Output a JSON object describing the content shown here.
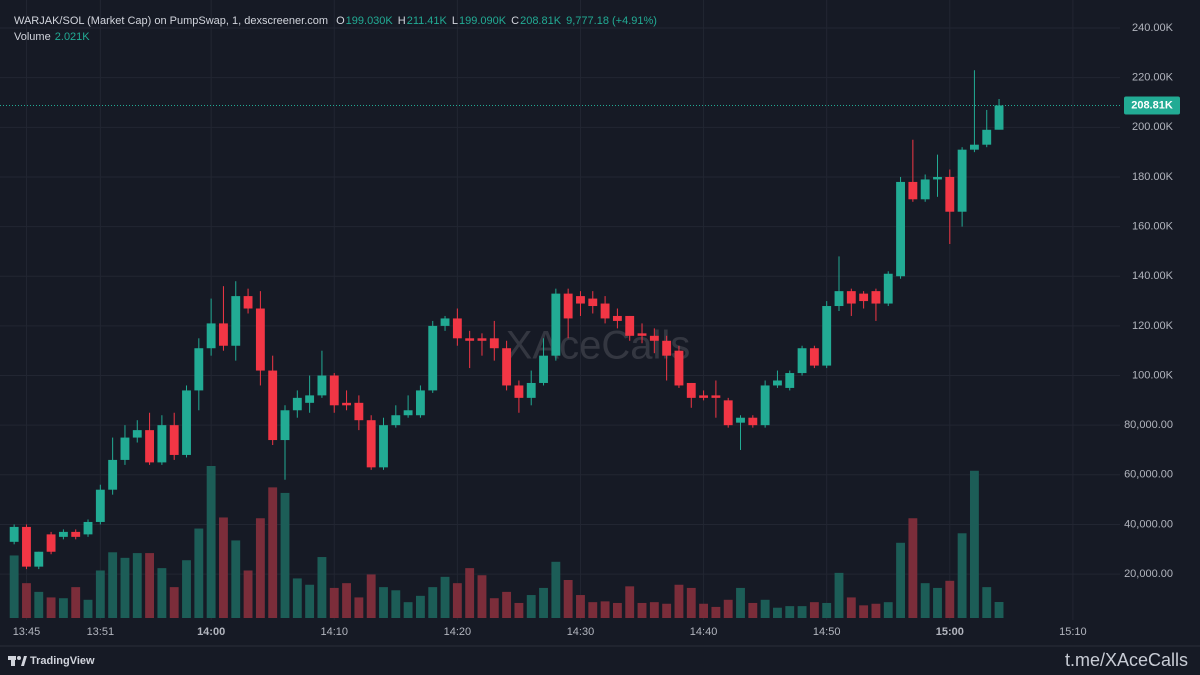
{
  "header": {
    "title": "WARJAK/SOL (Market Cap) on PumpSwap, 1, dexscreener.com",
    "ohlc": [
      {
        "key": "O",
        "value": "199.030K"
      },
      {
        "key": "H",
        "value": "211.41K"
      },
      {
        "key": "L",
        "value": "199.090K"
      },
      {
        "key": "C",
        "value": "208.81K"
      }
    ],
    "change": "9,777.18 (+4.91%)",
    "volume_label": "Volume",
    "volume_value": "2.021K"
  },
  "watermark": "XAceCalls",
  "footer": {
    "brand": "TradingView",
    "channel": "t.me/XAceCalls"
  },
  "chart_data": {
    "type": "candlestick",
    "up_color": "#22ab94",
    "down_color": "#f23645",
    "volume_up_color": "#1c5d57",
    "volume_down_color": "#7b2d3a",
    "grid": true,
    "categories": [
      null,
      "13:45",
      null,
      null,
      null,
      null,
      null,
      "13:51",
      null,
      null,
      null,
      null,
      null,
      null,
      null,
      null,
      "14:00",
      null,
      null,
      null,
      null,
      null,
      null,
      null,
      null,
      null,
      "14:10",
      null,
      null,
      null,
      null,
      null,
      null,
      null,
      null,
      null,
      "14:20",
      null,
      null,
      null,
      null,
      null,
      null,
      null,
      null,
      null,
      "14:30",
      null,
      null,
      null,
      null,
      null,
      null,
      null,
      null,
      null,
      "14:40",
      null,
      null,
      null,
      null,
      null,
      null,
      null,
      null,
      null,
      "14:50",
      null,
      null,
      null,
      null,
      null,
      null,
      null,
      null,
      null,
      "15:00",
      null,
      null,
      null,
      null,
      null,
      null,
      null,
      null,
      null,
      "15:10",
      null,
      null,
      null
    ],
    "open": [
      33000,
      39000,
      23000,
      36000,
      35000,
      37000,
      36000,
      41000,
      54000,
      66000,
      75000,
      78000,
      65000,
      80000,
      68000,
      94000,
      111000,
      121000,
      112000,
      132000,
      127000,
      102000,
      74000,
      86000,
      89000,
      92000,
      100000,
      89000,
      89000,
      82000,
      63000,
      80000,
      84000,
      84000,
      94000,
      120000,
      123000,
      115000,
      115000,
      115000,
      111000,
      96000,
      91000,
      97000,
      108000,
      133000,
      132000,
      131000,
      129000,
      124000,
      124000,
      117000,
      116000,
      114000,
      110000,
      97000,
      92000,
      92000,
      90000,
      81000,
      83000,
      80000,
      96000,
      95000,
      101000,
      111000,
      104000,
      128000,
      134000,
      133000,
      134000,
      129000,
      140000,
      178000,
      171000,
      179000,
      180000,
      166000,
      191000,
      193000,
      199030,
      null,
      null,
      null,
      null,
      null,
      null,
      null,
      null,
      null
    ],
    "high": [
      40000,
      40000,
      29000,
      37000,
      38000,
      38000,
      42000,
      56000,
      75000,
      80000,
      82000,
      85000,
      84000,
      85000,
      96000,
      115000,
      131000,
      136000,
      138000,
      135000,
      134000,
      108000,
      88000,
      94000,
      100000,
      110000,
      101000,
      94000,
      92000,
      84000,
      83000,
      88000,
      92000,
      96000,
      122000,
      124000,
      127000,
      118000,
      117000,
      122000,
      114000,
      98000,
      102000,
      115000,
      135000,
      135000,
      134000,
      134000,
      132000,
      127000,
      124000,
      121000,
      119000,
      116000,
      112000,
      97000,
      94000,
      98000,
      91000,
      84000,
      84000,
      98000,
      102000,
      102000,
      112000,
      112000,
      130000,
      148000,
      135000,
      134000,
      135000,
      142000,
      180000,
      195000,
      181000,
      189000,
      183000,
      192000,
      223000,
      207000,
      211410,
      null,
      null,
      null,
      null,
      null,
      null,
      null,
      null,
      null
    ],
    "low": [
      32000,
      22000,
      22000,
      28000,
      34000,
      34000,
      35000,
      40000,
      52000,
      64000,
      73000,
      64000,
      64000,
      66000,
      67000,
      86000,
      108000,
      110000,
      106000,
      125000,
      96000,
      72000,
      58000,
      83000,
      85000,
      91000,
      85000,
      86000,
      78000,
      62000,
      62000,
      79000,
      83000,
      83000,
      93000,
      118000,
      112000,
      103000,
      108000,
      106000,
      94000,
      85000,
      88000,
      96000,
      106000,
      115000,
      124000,
      125000,
      121000,
      119000,
      114000,
      113000,
      109000,
      98000,
      95000,
      87000,
      90000,
      83000,
      79000,
      70000,
      79000,
      79000,
      95000,
      94000,
      100000,
      103000,
      103000,
      126000,
      124000,
      127000,
      122000,
      128000,
      139000,
      170000,
      170000,
      172000,
      153000,
      160000,
      190000,
      192000,
      199090,
      null,
      null,
      null,
      null,
      null,
      null,
      null,
      null,
      null
    ],
    "close": [
      39000,
      23000,
      29000,
      29000,
      37000,
      35000,
      41000,
      54000,
      66000,
      75000,
      78000,
      65000,
      80000,
      68000,
      94000,
      111000,
      121000,
      112000,
      132000,
      127000,
      102000,
      74000,
      86000,
      91000,
      92000,
      100000,
      88000,
      88000,
      82000,
      63000,
      80000,
      84000,
      86000,
      94000,
      120000,
      123000,
      115000,
      114000,
      114000,
      111000,
      96000,
      91000,
      97000,
      108000,
      133000,
      123000,
      129000,
      128000,
      123000,
      122000,
      116000,
      116000,
      114000,
      108000,
      96000,
      91000,
      91000,
      91000,
      80000,
      83000,
      80000,
      96000,
      98000,
      101000,
      111000,
      104000,
      128000,
      134000,
      129000,
      130000,
      129000,
      141000,
      178000,
      171000,
      179000,
      180000,
      166000,
      191000,
      193000,
      199000,
      208810,
      null,
      null,
      null,
      null,
      null,
      null,
      null,
      null,
      null
    ],
    "volume": [
      7900,
      4400,
      3300,
      2600,
      2500,
      3900,
      2300,
      6000,
      8300,
      7600,
      8200,
      8200,
      6300,
      3900,
      7300,
      11300,
      19200,
      12700,
      9800,
      6000,
      12600,
      16500,
      15800,
      5000,
      4200,
      7700,
      3800,
      4400,
      2600,
      5500,
      3900,
      3500,
      2000,
      2800,
      3900,
      5200,
      4400,
      6300,
      5400,
      2500,
      3300,
      1900,
      2900,
      3800,
      7100,
      4800,
      2900,
      2000,
      2100,
      1900,
      4000,
      1900,
      2000,
      1800,
      4200,
      3800,
      1800,
      1400,
      2300,
      3800,
      1900,
      2300,
      1300,
      1500,
      1500,
      2000,
      1900,
      5700,
      2600,
      1600,
      1800,
      2000,
      9500,
      12600,
      4400,
      3800,
      4700,
      10700,
      18600,
      3900,
      2021,
      null,
      null,
      null,
      null,
      null,
      null,
      null,
      null,
      null
    ],
    "ylim": [
      1500,
      251300
    ],
    "yticks": [
      {
        "value": 20000,
        "label": "20,000.00"
      },
      {
        "value": 40000,
        "label": "40,000.00"
      },
      {
        "value": 60000,
        "label": "60,000.00"
      },
      {
        "value": 80000,
        "label": "80,000.00"
      },
      {
        "value": 100000,
        "label": "100.00K"
      },
      {
        "value": 120000,
        "label": "120.00K"
      },
      {
        "value": 140000,
        "label": "140.00K"
      },
      {
        "value": 160000,
        "label": "160.00K"
      },
      {
        "value": 180000,
        "label": "180.00K"
      },
      {
        "value": 200000,
        "label": "200.00K"
      },
      {
        "value": 220000,
        "label": "220.00K"
      },
      {
        "value": 240000,
        "label": "240.00K"
      }
    ],
    "price_line": {
      "value": 208810,
      "label": "208.81K"
    }
  }
}
